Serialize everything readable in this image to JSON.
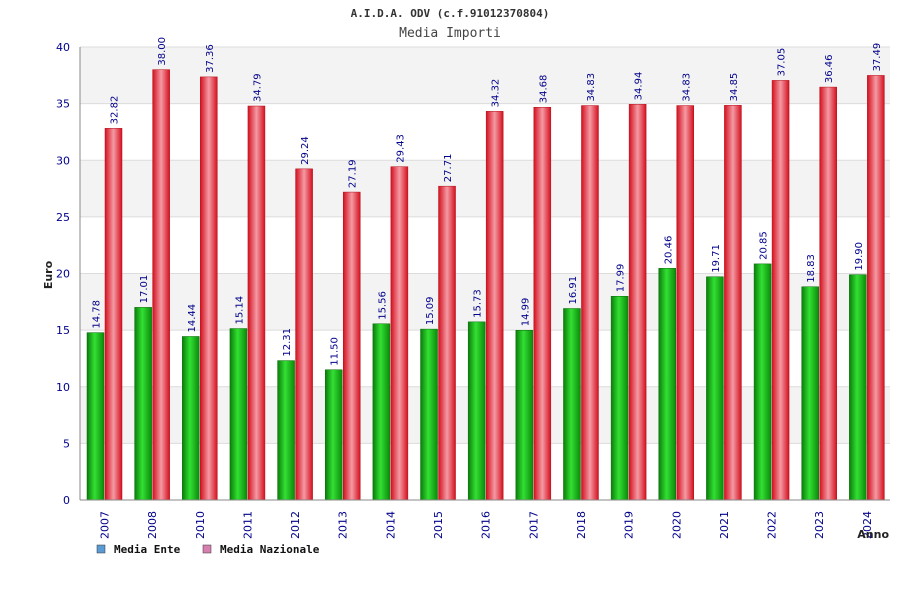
{
  "chart_data": {
    "type": "bar",
    "title": "A.I.D.A. ODV (c.f.91012370804)",
    "subtitle": "Media Importi",
    "xlabel": "Anno",
    "ylabel": "Euro",
    "ylim": [
      0,
      40
    ],
    "yticks": [
      "0",
      "5",
      "10",
      "15",
      "20",
      "25",
      "30",
      "35",
      "40"
    ],
    "categories": [
      "2007",
      "2008",
      "2010",
      "2011",
      "2012",
      "2013",
      "2014",
      "2015",
      "2016",
      "2017",
      "2018",
      "2019",
      "2020",
      "2021",
      "2022",
      "2023",
      "2024"
    ],
    "series": [
      {
        "name": "Media Ente",
        "color": "#1fa81f",
        "legend_color": "#5b9bd5",
        "values": [
          14.78,
          17.01,
          14.44,
          15.14,
          12.31,
          11.5,
          15.56,
          15.09,
          15.73,
          14.99,
          16.91,
          17.99,
          20.46,
          19.71,
          20.85,
          18.83,
          19.9
        ],
        "labels": [
          "14.78",
          "17.01",
          "14.44",
          "15.14",
          "12.31",
          "11.50",
          "15.56",
          "15.09",
          "15.73",
          "14.99",
          "16.91",
          "17.99",
          "20.46",
          "19.71",
          "20.85",
          "18.83",
          "19.90"
        ]
      },
      {
        "name": "Media Nazionale",
        "color": "#e8202e",
        "legend_color": "#d87fb0",
        "values": [
          32.82,
          38.0,
          37.36,
          34.79,
          29.24,
          27.19,
          29.43,
          27.71,
          34.32,
          34.68,
          34.83,
          34.94,
          34.83,
          34.85,
          37.05,
          36.46,
          37.49
        ],
        "labels": [
          "32.82",
          "38.00",
          "37.36",
          "34.79",
          "29.24",
          "27.19",
          "29.43",
          "27.71",
          "34.32",
          "34.68",
          "34.83",
          "34.94",
          "34.83",
          "34.85",
          "37.05",
          "36.46",
          "37.49"
        ]
      }
    ],
    "legend_position": "bottom-left",
    "grid": true
  }
}
